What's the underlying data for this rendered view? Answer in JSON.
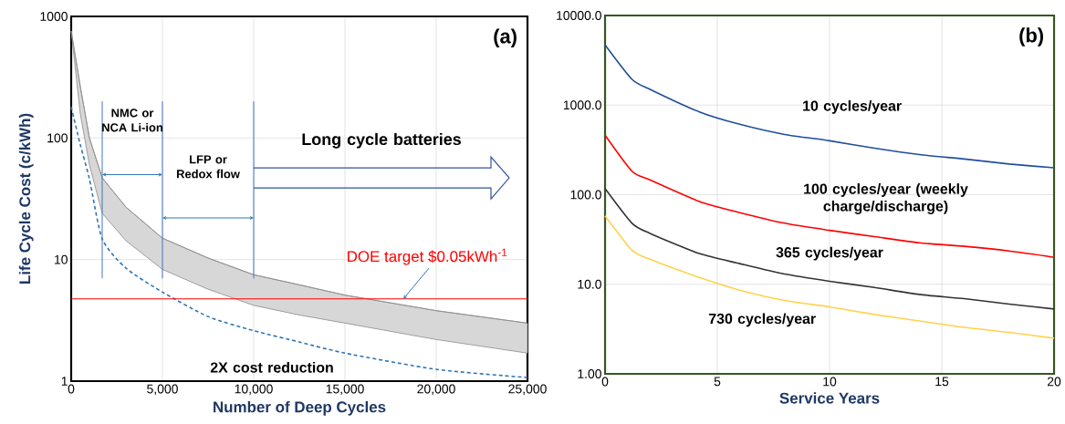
{
  "chart_data": [
    {
      "type": "line",
      "title": "(a)",
      "xlabel": "Number of Deep Cycles",
      "ylabel": "Life Cycle Cost (c/kWh)",
      "log": "y",
      "grid": true,
      "x": [
        0,
        500,
        1000,
        1700,
        3000,
        5000,
        7500,
        10000,
        12500,
        15000,
        20000,
        25000
      ],
      "series": [
        {
          "type": "line",
          "color": "#8c8c8c",
          "values": [
            760,
            265,
            100,
            47,
            27,
            15,
            10.3,
            7.5,
            6.2,
            5.1,
            3.8,
            3.0
          ],
          "upper": [
            760,
            265,
            100,
            47,
            27,
            15,
            10.3,
            7.5,
            6.2,
            5.1,
            3.8,
            3.0
          ],
          "lower": [
            760,
            157,
            60,
            24,
            14.3,
            8.3,
            5.7,
            4.2,
            3.5,
            3.0,
            2.2,
            1.7
          ]
        },
        {
          "type": "line",
          "name": "2X cost reduction",
          "color": "#2e75b6",
          "line_style": "dashed",
          "values": [
            180,
            88,
            46,
            14.8,
            8.5,
            5.4,
            3.4,
            2.6,
            2.1,
            1.7,
            1.25,
            1.07
          ]
        }
      ],
      "xlim": [
        0,
        25000
      ],
      "ylim": [
        1,
        1000
      ],
      "xticks": [
        0,
        {
          "value": 5000,
          "label": "5,000"
        },
        {
          "value": 10000,
          "label": "10,000"
        },
        {
          "value": 15000,
          "label": "15,000"
        },
        {
          "value": 20000,
          "label": "20,000"
        },
        {
          "value": 25000,
          "label": "25,000"
        }
      ],
      "yticks": [
        1,
        10,
        100,
        1000
      ],
      "ref_lines": [
        {
          "axis": "y",
          "value": 4.75,
          "label": "DOE target $0.05kWh$^{-1}$",
          "color": "#ff0000"
        },
        {
          "axis": "x",
          "value": 1700,
          "color": "#4472c4"
        },
        {
          "axis": "x",
          "value": 5000,
          "color": "#4472c4"
        },
        {
          "axis": "x",
          "value": 10000,
          "color": "#4472c4"
        }
      ],
      "annotations": [
        "NMC or NCA Li-ion",
        "LFP or Redox flow",
        "Long cycle batteries"
      ]
    },
    {
      "type": "line",
      "title": "(b)",
      "xlabel": "Service Years",
      "log": "y",
      "grid": true,
      "x": [
        0,
        1.2,
        2,
        4.2,
        6,
        8,
        10,
        12,
        14,
        16,
        18,
        20
      ],
      "series": [
        {
          "name": "10 cycles/year",
          "color": "#1f4e9c",
          "values": [
            4700,
            1940,
            1500,
            840,
            610,
            470,
            400,
            330,
            280,
            250,
            220,
            200
          ]
        },
        {
          "name": "100 cycles/year (weekly charge/discharge)",
          "color": "#ff0000",
          "values": [
            462,
            183,
            146,
            84,
            63,
            48,
            40,
            34,
            29,
            26.5,
            23.5,
            20
          ]
        },
        {
          "name": "365 cycles/year",
          "color": "#333333",
          "values": [
            117,
            48,
            37,
            22,
            17,
            13,
            10.8,
            9.2,
            7.7,
            6.9,
            6.0,
            5.3
          ]
        },
        {
          "name": "730 cycles/year",
          "color": "#ffd24d",
          "values": [
            58,
            24,
            19,
            11.9,
            8.6,
            6.6,
            5.6,
            4.6,
            3.9,
            3.3,
            2.9,
            2.5
          ]
        }
      ],
      "xlim": [
        0,
        20
      ],
      "ylim": [
        1,
        10000
      ],
      "xticks": [
        0,
        5,
        10,
        15,
        20
      ],
      "yticks": [
        {
          "value": 1,
          "label": "1.00"
        },
        {
          "value": 10,
          "label": "10.0"
        },
        {
          "value": 100,
          "label": "100.0"
        },
        {
          "value": 1000,
          "label": "1000.0"
        },
        {
          "value": 10000,
          "label": "10000.0"
        }
      ]
    }
  ]
}
